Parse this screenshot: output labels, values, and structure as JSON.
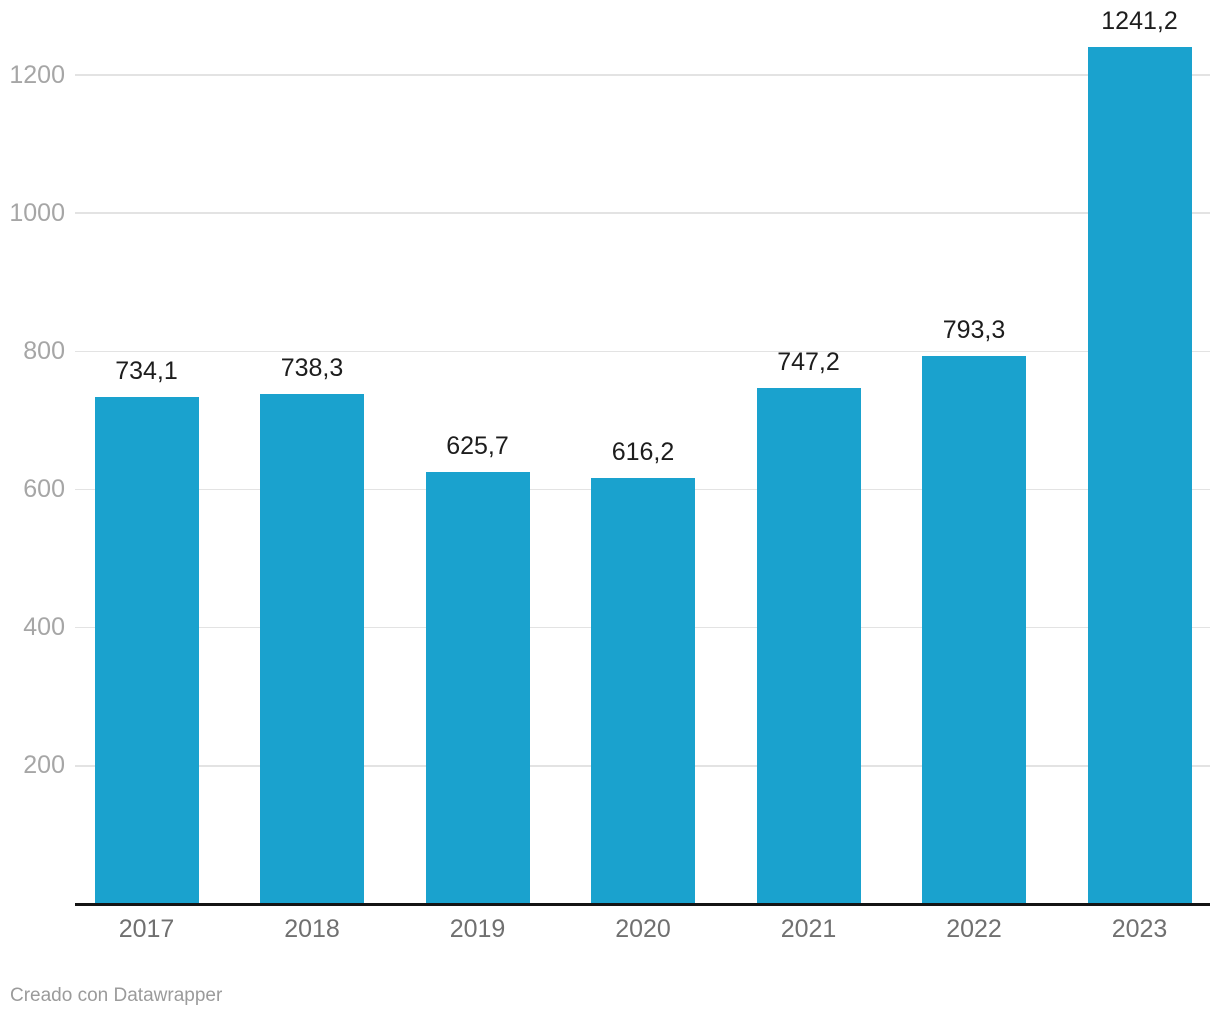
{
  "chart_data": {
    "type": "bar",
    "categories": [
      "2017",
      "2018",
      "2019",
      "2020",
      "2021",
      "2022",
      "2023"
    ],
    "values": [
      734.1,
      738.3,
      625.7,
      616.2,
      747.2,
      793.3,
      1241.2
    ],
    "value_labels": [
      "734,1",
      "738,3",
      "625,7",
      "616,2",
      "747,2",
      "793,3",
      "1241,2"
    ],
    "y_ticks": [
      200,
      400,
      600,
      800,
      1000,
      1200
    ],
    "ylim": [
      0,
      1300
    ],
    "title": "",
    "xlabel": "",
    "ylabel": "",
    "grid": "horizontal",
    "legend": "none",
    "decimal_separator": ",",
    "bar_color": "#1aa2ce"
  },
  "colors": {
    "bar": "#1aa2ce",
    "value_label": "#1d1d1d",
    "y_tick_label": "#a6a6a6",
    "x_tick_label": "#707070",
    "gridline": "#e3e3e3",
    "axis_line": "#141414",
    "footer_text": "#9b9b9b",
    "background": "#ffffff"
  },
  "footer": {
    "credit": "Creado con Datawrapper"
  }
}
